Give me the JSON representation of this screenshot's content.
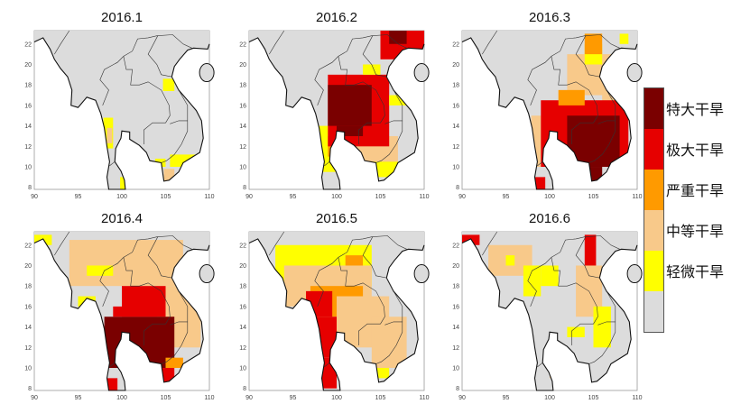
{
  "chart_data": {
    "type": "heatmap",
    "xlim": [
      90,
      110
    ],
    "ylim": [
      7.8,
      23.3
    ],
    "xticks": [
      "90",
      "95",
      "100",
      "105",
      "110"
    ],
    "yticks": [
      "8",
      "10",
      "12",
      "14",
      "16",
      "18",
      "20",
      "22"
    ],
    "legend": {
      "placement": "right",
      "levels": [
        {
          "level": 5,
          "label": "特大干旱",
          "color": "#7a0000"
        },
        {
          "level": 4,
          "label": "极大干旱",
          "color": "#e60000"
        },
        {
          "level": 3,
          "label": "严重干旱",
          "color": "#ff9a00"
        },
        {
          "level": 2,
          "label": "中等干旱",
          "color": "#f8c98a"
        },
        {
          "level": 1,
          "label": "轻微干旱",
          "color": "#ffff00"
        },
        {
          "level": 0,
          "label": "",
          "color": "#dcdcdc"
        }
      ]
    },
    "panels": [
      {
        "title": "2016.1",
        "cells": [
          [
            97.9,
            11.8,
            99,
            14.8,
            1
          ],
          [
            98.3,
            12.3,
            98.9,
            13.8,
            2
          ],
          [
            104.7,
            17.4,
            106,
            18.6,
            1
          ],
          [
            103.8,
            10,
            105,
            10.8,
            1
          ],
          [
            105.5,
            10,
            109,
            11.2,
            1
          ],
          [
            104.8,
            8.6,
            106,
            9.8,
            2
          ],
          [
            99.8,
            7.8,
            100.6,
            9,
            1
          ]
        ]
      },
      {
        "title": "2016.2",
        "cells": [
          [
            98,
            9.5,
            100,
            14,
            1
          ],
          [
            99,
            11,
            100,
            13,
            3
          ],
          [
            101,
            10,
            107,
            13,
            2
          ],
          [
            99,
            12,
            106,
            19,
            4
          ],
          [
            99,
            14,
            104,
            18,
            5
          ],
          [
            100,
            13,
            103,
            14,
            5
          ],
          [
            105,
            20.5,
            110,
            23.3,
            4
          ],
          [
            106,
            22,
            108,
            23.3,
            5
          ],
          [
            104,
            9,
            107,
            10.5,
            1
          ],
          [
            103,
            19,
            105,
            20,
            1
          ],
          [
            106,
            16,
            108,
            17,
            1
          ]
        ]
      },
      {
        "title": "2016.3",
        "cells": [
          [
            97.9,
            10,
            99,
            15,
            2
          ],
          [
            102,
            17,
            108,
            21,
            2
          ],
          [
            106,
            14,
            109,
            17,
            2
          ],
          [
            99,
            10,
            109,
            16.5,
            4
          ],
          [
            101,
            16,
            104,
            17.5,
            3
          ],
          [
            102,
            10,
            108,
            15,
            5
          ],
          [
            104.5,
            8.6,
            106,
            10,
            5
          ],
          [
            98,
            7.8,
            99.5,
            9,
            4
          ],
          [
            104,
            20,
            106,
            22,
            1
          ],
          [
            104,
            21,
            106,
            23,
            3
          ],
          [
            108,
            22,
            109,
            23,
            1
          ]
        ]
      },
      {
        "title": "2016.4",
        "cells": [
          [
            94,
            18,
            107,
            22.5,
            2
          ],
          [
            96,
            19,
            99,
            20,
            1
          ],
          [
            90,
            22,
            92,
            23,
            1
          ],
          [
            104,
            12,
            109,
            18,
            2
          ],
          [
            100,
            15,
            105,
            18,
            4
          ],
          [
            98,
            10,
            106,
            15,
            5
          ],
          [
            99,
            15,
            104,
            16,
            4
          ],
          [
            98,
            7.8,
            99.5,
            9,
            4
          ],
          [
            104,
            8.6,
            106,
            10,
            4
          ],
          [
            95,
            16,
            97,
            17,
            1
          ],
          [
            105,
            10,
            107,
            11,
            3
          ]
        ]
      },
      {
        "title": "2016.5",
        "cells": [
          [
            93,
            18,
            104,
            22,
            1
          ],
          [
            94,
            16,
            104,
            20,
            2
          ],
          [
            97,
            15,
            103,
            18,
            3
          ],
          [
            96.5,
            15,
            99.5,
            17.5,
            4
          ],
          [
            97,
            11,
            101,
            15,
            4
          ],
          [
            98,
            8,
            100,
            11,
            4
          ],
          [
            100,
            12,
            106,
            17,
            2
          ],
          [
            104,
            10,
            108,
            15,
            2
          ],
          [
            104,
            9,
            106,
            10,
            1
          ],
          [
            101,
            20,
            103,
            21,
            3
          ]
        ]
      },
      {
        "title": "2016.6",
        "cells": [
          [
            93,
            19,
            98,
            22,
            2
          ],
          [
            90,
            22,
            92,
            23,
            4
          ],
          [
            95,
            20,
            96,
            21,
            1
          ],
          [
            97,
            17,
            99,
            20,
            1
          ],
          [
            104,
            17,
            105.3,
            23,
            4
          ],
          [
            103,
            15,
            106,
            20,
            2
          ],
          [
            105,
            12,
            107,
            16,
            1
          ],
          [
            102,
            13,
            104,
            14,
            1
          ],
          [
            100,
            9,
            102,
            11,
            2
          ],
          [
            99,
            18,
            101,
            20,
            1
          ]
        ]
      }
    ]
  }
}
